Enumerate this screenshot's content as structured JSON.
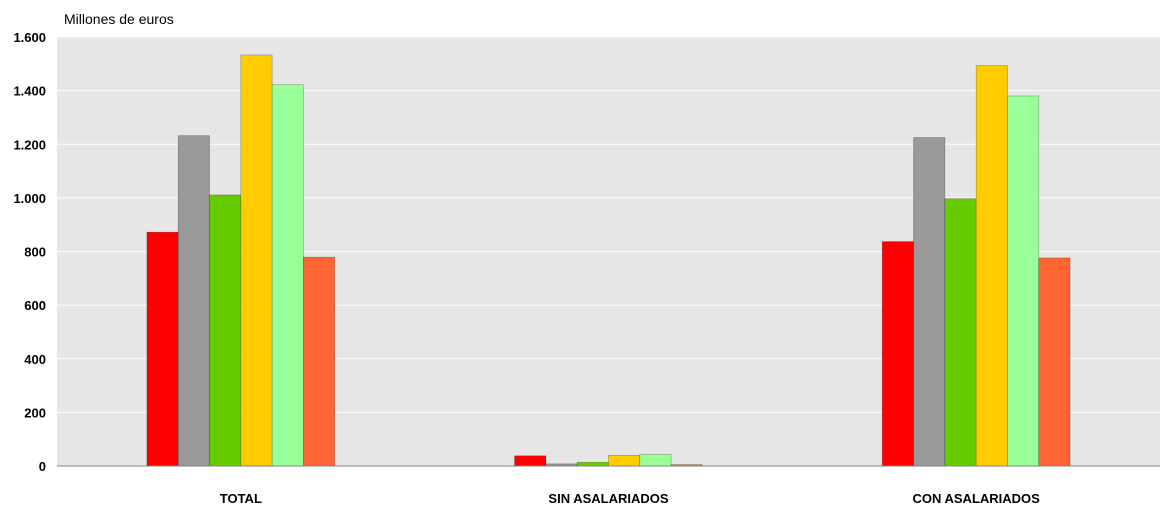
{
  "chart_data": {
    "type": "bar",
    "title": "",
    "unit_label": "Millones de euros",
    "categories": [
      "TOTAL",
      "SIN ASALARIADOS",
      "CON ASALARIADOS"
    ],
    "ylim": [
      0,
      1600
    ],
    "yticks": [
      0,
      200,
      400,
      600,
      800,
      1000,
      1200,
      1400,
      1600
    ],
    "ytick_labels": [
      "0",
      "200",
      "400",
      "600",
      "800",
      "1.000",
      "1.200",
      "1.400",
      "1.600"
    ],
    "grid": true,
    "legend": "none",
    "series": [
      {
        "color": "#ff0000",
        "values": [
          872,
          38,
          837
        ]
      },
      {
        "color": "#999999",
        "values": [
          1232,
          8,
          1225
        ]
      },
      {
        "color": "#66cc00",
        "values": [
          1011,
          14,
          997
        ]
      },
      {
        "color": "#ffcc00",
        "values": [
          1533,
          40,
          1493
        ]
      },
      {
        "color": "#99ff99",
        "values": [
          1422,
          43,
          1380
        ]
      },
      {
        "color": "#ff6633",
        "values": [
          779,
          5,
          776
        ]
      }
    ]
  },
  "colors": {
    "plot_background": "#e6e6e6",
    "gridline": "#ffffff",
    "axis": "#808080"
  }
}
